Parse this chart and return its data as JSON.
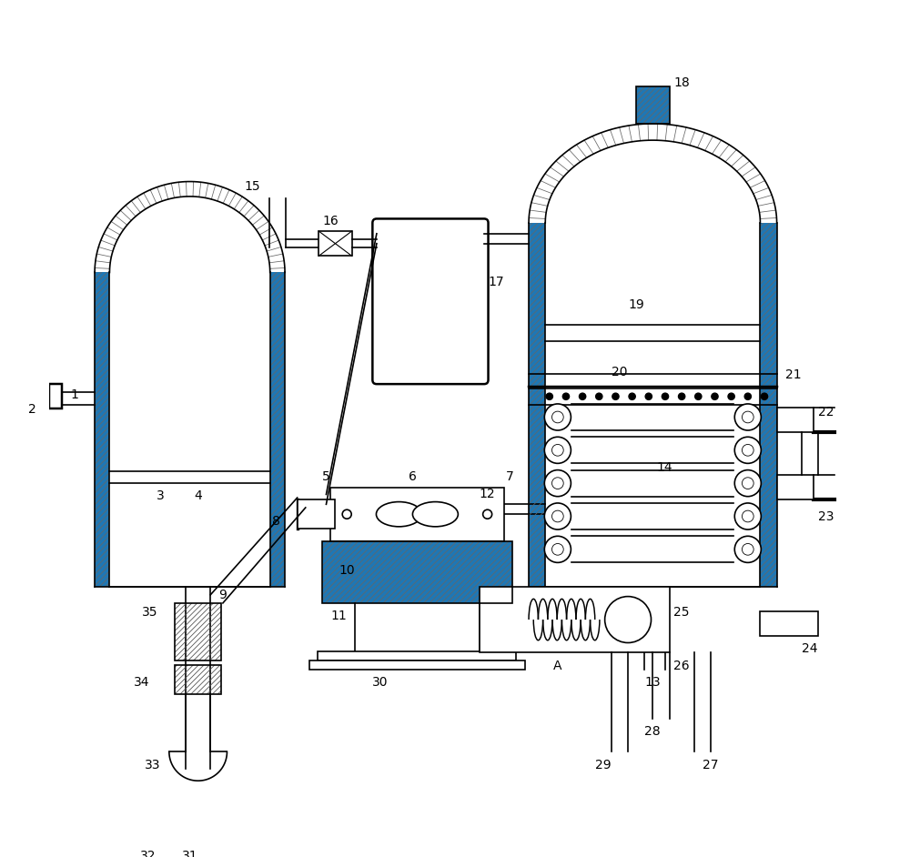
{
  "bg_color": "#ffffff",
  "line_color": "#000000",
  "figsize": [
    10.0,
    9.42
  ],
  "dpi": 100
}
